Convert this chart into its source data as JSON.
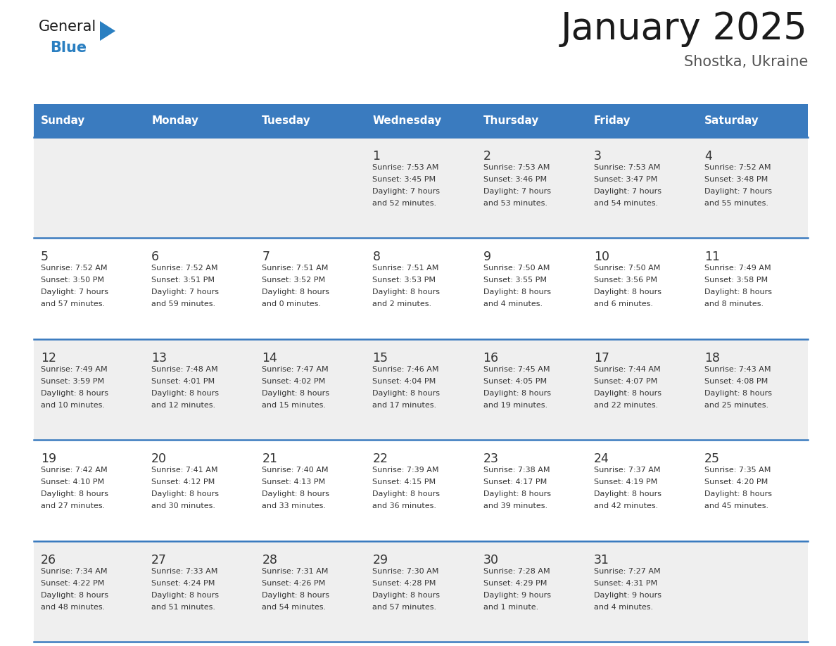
{
  "title": "January 2025",
  "subtitle": "Shostka, Ukraine",
  "days_of_week": [
    "Sunday",
    "Monday",
    "Tuesday",
    "Wednesday",
    "Thursday",
    "Friday",
    "Saturday"
  ],
  "header_bg": "#3a7bbf",
  "header_text_color": "#ffffff",
  "row_bg_odd": "#efefef",
  "row_bg_even": "#ffffff",
  "cell_text_color": "#333333",
  "day_num_color": "#333333",
  "border_color": "#3a7bbf",
  "calendar_data": [
    [
      {
        "day": "",
        "sunrise": "",
        "sunset": "",
        "hours": "",
        "minutes": ""
      },
      {
        "day": "",
        "sunrise": "",
        "sunset": "",
        "hours": "",
        "minutes": ""
      },
      {
        "day": "",
        "sunrise": "",
        "sunset": "",
        "hours": "",
        "minutes": ""
      },
      {
        "day": "1",
        "sunrise": "7:53 AM",
        "sunset": "3:45 PM",
        "hours": "7",
        "minutes": "52"
      },
      {
        "day": "2",
        "sunrise": "7:53 AM",
        "sunset": "3:46 PM",
        "hours": "7",
        "minutes": "53"
      },
      {
        "day": "3",
        "sunrise": "7:53 AM",
        "sunset": "3:47 PM",
        "hours": "7",
        "minutes": "54"
      },
      {
        "day": "4",
        "sunrise": "7:52 AM",
        "sunset": "3:48 PM",
        "hours": "7",
        "minutes": "55"
      }
    ],
    [
      {
        "day": "5",
        "sunrise": "7:52 AM",
        "sunset": "3:50 PM",
        "hours": "7",
        "minutes": "57"
      },
      {
        "day": "6",
        "sunrise": "7:52 AM",
        "sunset": "3:51 PM",
        "hours": "7",
        "minutes": "59"
      },
      {
        "day": "7",
        "sunrise": "7:51 AM",
        "sunset": "3:52 PM",
        "hours": "8",
        "minutes": "0"
      },
      {
        "day": "8",
        "sunrise": "7:51 AM",
        "sunset": "3:53 PM",
        "hours": "8",
        "minutes": "2"
      },
      {
        "day": "9",
        "sunrise": "7:50 AM",
        "sunset": "3:55 PM",
        "hours": "8",
        "minutes": "4"
      },
      {
        "day": "10",
        "sunrise": "7:50 AM",
        "sunset": "3:56 PM",
        "hours": "8",
        "minutes": "6"
      },
      {
        "day": "11",
        "sunrise": "7:49 AM",
        "sunset": "3:58 PM",
        "hours": "8",
        "minutes": "8"
      }
    ],
    [
      {
        "day": "12",
        "sunrise": "7:49 AM",
        "sunset": "3:59 PM",
        "hours": "8",
        "minutes": "10"
      },
      {
        "day": "13",
        "sunrise": "7:48 AM",
        "sunset": "4:01 PM",
        "hours": "8",
        "minutes": "12"
      },
      {
        "day": "14",
        "sunrise": "7:47 AM",
        "sunset": "4:02 PM",
        "hours": "8",
        "minutes": "15"
      },
      {
        "day": "15",
        "sunrise": "7:46 AM",
        "sunset": "4:04 PM",
        "hours": "8",
        "minutes": "17"
      },
      {
        "day": "16",
        "sunrise": "7:45 AM",
        "sunset": "4:05 PM",
        "hours": "8",
        "minutes": "19"
      },
      {
        "day": "17",
        "sunrise": "7:44 AM",
        "sunset": "4:07 PM",
        "hours": "8",
        "minutes": "22"
      },
      {
        "day": "18",
        "sunrise": "7:43 AM",
        "sunset": "4:08 PM",
        "hours": "8",
        "minutes": "25"
      }
    ],
    [
      {
        "day": "19",
        "sunrise": "7:42 AM",
        "sunset": "4:10 PM",
        "hours": "8",
        "minutes": "27"
      },
      {
        "day": "20",
        "sunrise": "7:41 AM",
        "sunset": "4:12 PM",
        "hours": "8",
        "minutes": "30"
      },
      {
        "day": "21",
        "sunrise": "7:40 AM",
        "sunset": "4:13 PM",
        "hours": "8",
        "minutes": "33"
      },
      {
        "day": "22",
        "sunrise": "7:39 AM",
        "sunset": "4:15 PM",
        "hours": "8",
        "minutes": "36"
      },
      {
        "day": "23",
        "sunrise": "7:38 AM",
        "sunset": "4:17 PM",
        "hours": "8",
        "minutes": "39"
      },
      {
        "day": "24",
        "sunrise": "7:37 AM",
        "sunset": "4:19 PM",
        "hours": "8",
        "minutes": "42"
      },
      {
        "day": "25",
        "sunrise": "7:35 AM",
        "sunset": "4:20 PM",
        "hours": "8",
        "minutes": "45"
      }
    ],
    [
      {
        "day": "26",
        "sunrise": "7:34 AM",
        "sunset": "4:22 PM",
        "hours": "8",
        "minutes": "48"
      },
      {
        "day": "27",
        "sunrise": "7:33 AM",
        "sunset": "4:24 PM",
        "hours": "8",
        "minutes": "51"
      },
      {
        "day": "28",
        "sunrise": "7:31 AM",
        "sunset": "4:26 PM",
        "hours": "8",
        "minutes": "54"
      },
      {
        "day": "29",
        "sunrise": "7:30 AM",
        "sunset": "4:28 PM",
        "hours": "8",
        "minutes": "57"
      },
      {
        "day": "30",
        "sunrise": "7:28 AM",
        "sunset": "4:29 PM",
        "hours": "9",
        "minutes": "1"
      },
      {
        "day": "31",
        "sunrise": "7:27 AM",
        "sunset": "4:31 PM",
        "hours": "9",
        "minutes": "4"
      },
      {
        "day": "",
        "sunrise": "",
        "sunset": "",
        "hours": "",
        "minutes": ""
      }
    ]
  ],
  "logo_general_color": "#1a1a1a",
  "logo_blue_color": "#2a7fc1",
  "logo_triangle_color": "#2a7fc1",
  "title_color": "#1a1a1a",
  "subtitle_color": "#555555"
}
